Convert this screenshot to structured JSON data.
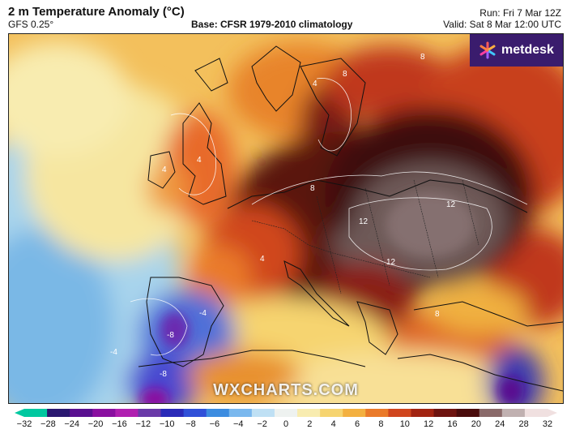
{
  "header": {
    "title": "2 m Temperature Anomaly (°C)",
    "model": "GFS 0.25°",
    "base": "Base: CFSR 1979-2010 climatology",
    "run": "Run: Fri 7 Mar 12Z",
    "valid": "Valid: Sat 8 Mar 12:00 UTC"
  },
  "brand": {
    "logo_text": "metdesk",
    "watermark": "WXCHARTS.COM",
    "logo_bg": "#3a1c6d"
  },
  "scale": {
    "ticks": [
      "−32",
      "−28",
      "−24",
      "−20",
      "−16",
      "−12",
      "−10",
      "−8",
      "−6",
      "−4",
      "−2",
      "0",
      "2",
      "4",
      "6",
      "8",
      "10",
      "12",
      "16",
      "20",
      "24",
      "28",
      "32"
    ],
    "colors": [
      "#00c8a0",
      "#2a1870",
      "#5a1090",
      "#8a10a0",
      "#b020b0",
      "#6a3aa8",
      "#2a2ab8",
      "#3050d8",
      "#3c8ce0",
      "#7ab8ee",
      "#bfe0f4",
      "#eef2f0",
      "#f8ecb0",
      "#f6d470",
      "#f3b040",
      "#ea7a2a",
      "#d0461e",
      "#a22412",
      "#6e1410",
      "#4a0c0c",
      "#8a6a6a",
      "#c0b0b0",
      "#f0e0e0"
    ]
  },
  "contour_labels": [
    {
      "text": "8"
    },
    {
      "text": "4"
    },
    {
      "text": "8"
    },
    {
      "text": "12"
    },
    {
      "text": "12"
    },
    {
      "text": "12"
    },
    {
      "text": "8"
    },
    {
      "text": "4"
    },
    {
      "text": "-4"
    },
    {
      "text": "-8"
    },
    {
      "text": "-4"
    },
    {
      "text": "8"
    },
    {
      "text": "4"
    },
    {
      "text": "-8"
    },
    {
      "text": "4"
    }
  ]
}
